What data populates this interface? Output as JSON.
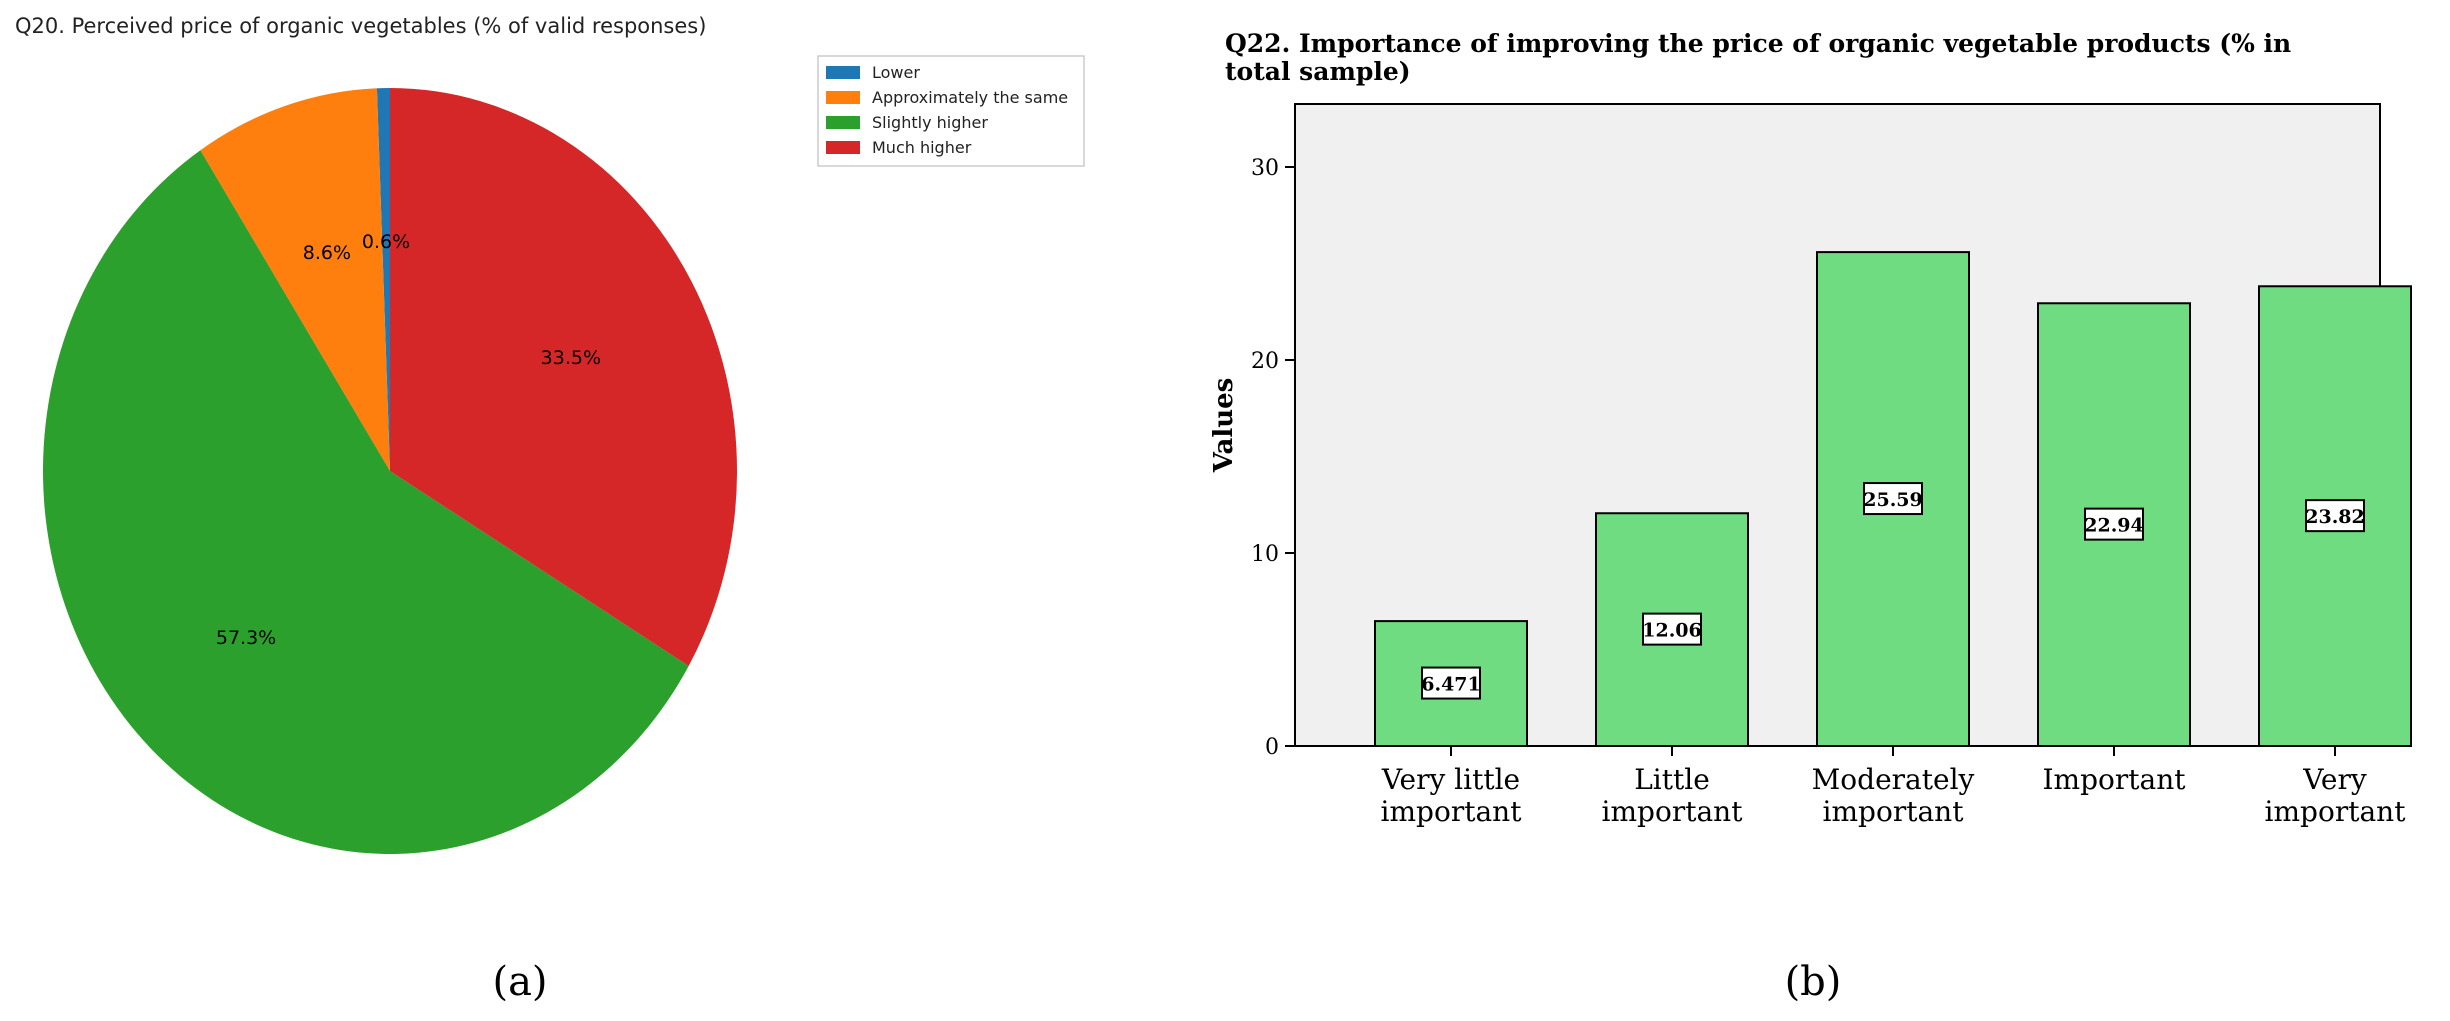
{
  "figure_a": {
    "panel_label": "(a)",
    "chart_data": {
      "type": "pie",
      "title": "Q20. Perceived price of organic vegetables (% of valid responses)",
      "labels": [
        "Lower",
        "Approximately the same",
        "Slightly higher",
        "Much higher"
      ],
      "values": [
        0.6,
        8.6,
        57.3,
        33.5
      ],
      "value_labels": [
        "0.6%",
        "8.6%",
        "57.3%",
        "33.5%"
      ],
      "colors": [
        "#1f77b4",
        "#ff7f0e",
        "#2ca02c",
        "#d62728"
      ],
      "start_angle_deg": 90,
      "direction": "counterclockwise",
      "legend_position": "top-right"
    }
  },
  "figure_b": {
    "panel_label": "(b)",
    "chart_data": {
      "type": "bar",
      "title_lines": [
        "Q22. Importance of improving the price of organic vegetable products (% in",
        "total sample)"
      ],
      "categories": [
        [
          "Very little",
          "important"
        ],
        [
          "Little",
          "important"
        ],
        [
          "Moderately",
          "important"
        ],
        [
          "Important"
        ],
        [
          "Very",
          "important"
        ]
      ],
      "values": [
        6.471,
        12.06,
        25.59,
        22.94,
        23.82
      ],
      "value_labels": [
        "6.471",
        "12.06",
        "25.59",
        "22.94",
        "23.82"
      ],
      "ylabel": "Values",
      "xlabel": "",
      "ylim": [
        0,
        30
      ],
      "yticks": [
        0,
        10,
        20,
        30
      ],
      "bar_color": "#6fdc82",
      "plot_background": "#f0f0f0",
      "grid": false
    }
  }
}
